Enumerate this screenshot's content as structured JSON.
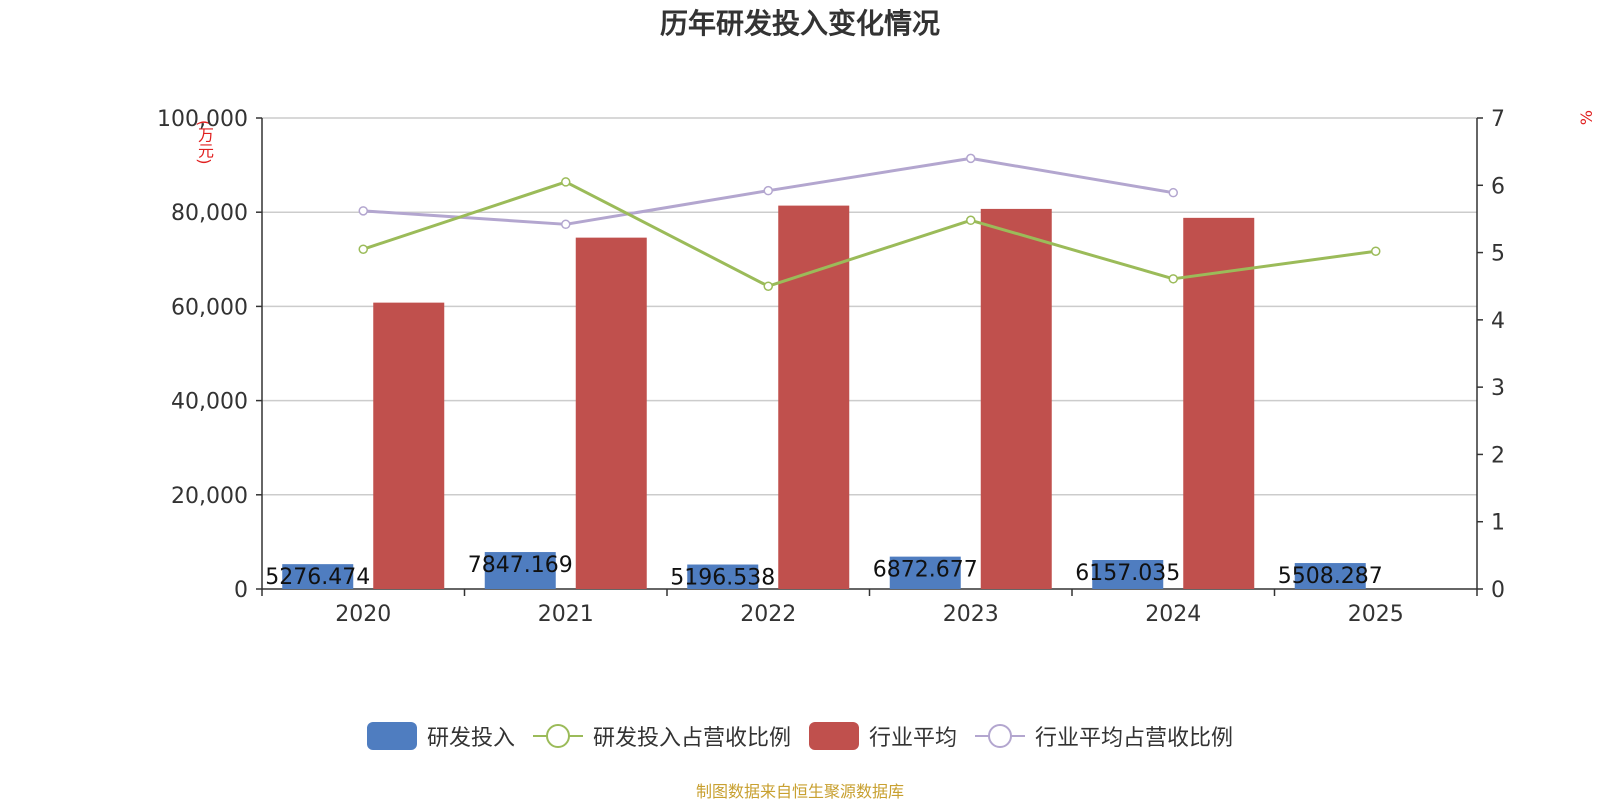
{
  "title": "历年研发投入变化情况",
  "left_unit": "(万元)",
  "right_unit": "%",
  "source": "制图数据来自恒生聚源数据库",
  "colors": {
    "rd": "#4f7dc0",
    "rd_ratio": "#9bbb59",
    "industry": "#c0504d",
    "industry_ratio": "#b3a6cf",
    "grid": "#cccccc",
    "axis": "#333333"
  },
  "chart_data": {
    "type": "bar",
    "categories": [
      "2020",
      "2021",
      "2022",
      "2023",
      "2024",
      "2025"
    ],
    "y_left": {
      "min": 0,
      "max": 100000,
      "ticks": [
        "0",
        "20,000",
        "40,000",
        "60,000",
        "80,000",
        "100,000"
      ]
    },
    "y_right": {
      "min": 0,
      "max": 7,
      "ticks": [
        "0",
        "1",
        "2",
        "3",
        "4",
        "5",
        "6",
        "7"
      ]
    },
    "grid": true,
    "legend_position": "bottom-center",
    "series": [
      {
        "name": "研发投入",
        "kind": "bar",
        "axis": "left",
        "values": [
          5276.474,
          7847.169,
          5196.538,
          6872.677,
          6157.035,
          5508.287
        ],
        "labels": [
          "5276.474",
          "7847.169",
          "5196.538",
          "6872.677",
          "6157.035",
          "5508.287"
        ]
      },
      {
        "name": "研发投入占营收比例",
        "kind": "line",
        "axis": "right",
        "values": [
          5.05,
          6.05,
          4.5,
          5.48,
          4.61,
          5.02
        ]
      },
      {
        "name": "行业平均",
        "kind": "bar",
        "axis": "left",
        "values": [
          60800,
          74600,
          81400,
          80700,
          78800,
          null
        ]
      },
      {
        "name": "行业平均占营收比例",
        "kind": "line",
        "axis": "right",
        "values": [
          5.62,
          5.42,
          5.92,
          6.4,
          5.89,
          null
        ]
      }
    ]
  }
}
